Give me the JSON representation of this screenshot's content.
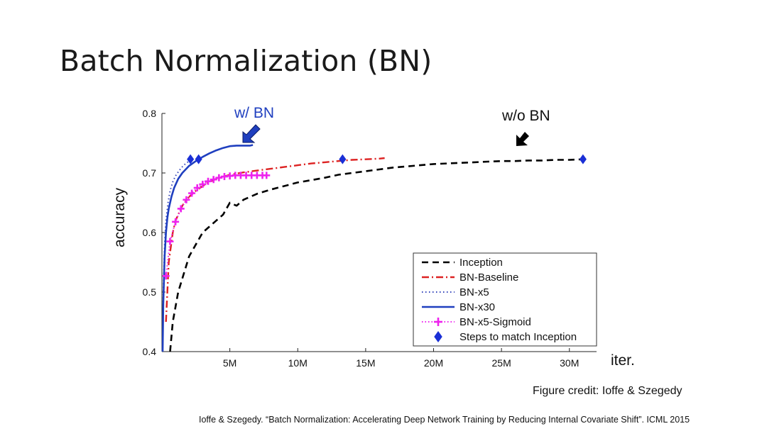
{
  "slide": {
    "title": "Batch Normalization (BN)",
    "credit": "Figure credit: Ioffe & Szegedy",
    "citation": "Ioffe & Szegedy. “Batch Normalization: Accelerating Deep Network Training by Reducing Internal Covariate Shift”. ICML 2015"
  },
  "annotations": {
    "with_bn": "w/ BN",
    "without_bn": "w/o BN",
    "with_bn_color": "#1f3fbf",
    "arrow_colors": {
      "with_bn": "#1f3fbf",
      "without_bn": "#000000"
    }
  },
  "chart_data": {
    "type": "line",
    "title": "",
    "xlabel": "iter.",
    "ylabel": "accuracy",
    "xlim": [
      0,
      32
    ],
    "ylim": [
      0.4,
      0.8
    ],
    "x_unit": "M",
    "xticks": [
      5,
      10,
      15,
      20,
      25,
      30
    ],
    "xtick_labels": [
      "5M",
      "10M",
      "15M",
      "20M",
      "25M",
      "30M"
    ],
    "yticks": [
      0.4,
      0.5,
      0.6,
      0.7,
      0.8
    ],
    "ytick_labels": [
      "0.4",
      "0.5",
      "0.6",
      "0.7",
      "0.8"
    ],
    "grid": false,
    "legend_position": "bottom-right",
    "series": [
      {
        "name": "Inception",
        "color": "#000000",
        "style": "dashed",
        "x": [
          0.6,
          0.8,
          1.2,
          1.6,
          2.0,
          2.5,
          3.0,
          3.5,
          4.0,
          4.5,
          5.0,
          5.5,
          6.0,
          7.0,
          8.0,
          9.0,
          10.0,
          11.0,
          12.0,
          13.0,
          14.0,
          15.0,
          16.0,
          17.0,
          18.0,
          19.0,
          20.0,
          21.0,
          22.0,
          23.0,
          24.0,
          25.0,
          26.0,
          27.0,
          28.0,
          29.0,
          30.0,
          31.0
        ],
        "y": [
          0.4,
          0.45,
          0.5,
          0.53,
          0.56,
          0.58,
          0.6,
          0.61,
          0.62,
          0.63,
          0.65,
          0.645,
          0.655,
          0.665,
          0.672,
          0.678,
          0.684,
          0.688,
          0.692,
          0.697,
          0.7,
          0.703,
          0.706,
          0.709,
          0.711,
          0.713,
          0.715,
          0.716,
          0.717,
          0.718,
          0.719,
          0.72,
          0.72,
          0.721,
          0.721,
          0.722,
          0.722,
          0.723
        ]
      },
      {
        "name": "BN-Baseline",
        "color": "#dd2222",
        "style": "dashdot",
        "x": [
          0.3,
          0.5,
          0.8,
          1.0,
          1.5,
          2.0,
          2.5,
          3.0,
          3.5,
          4.0,
          5.0,
          6.0,
          7.0,
          8.0,
          9.0,
          10.0,
          11.0,
          12.0,
          13.0,
          14.0,
          15.0,
          16.0,
          16.4
        ],
        "y": [
          0.45,
          0.55,
          0.6,
          0.62,
          0.645,
          0.66,
          0.67,
          0.678,
          0.685,
          0.69,
          0.697,
          0.701,
          0.704,
          0.707,
          0.71,
          0.713,
          0.716,
          0.718,
          0.72,
          0.722,
          0.723,
          0.724,
          0.725
        ]
      },
      {
        "name": "BN-x5",
        "color": "#3344bb",
        "style": "dotted",
        "x": [
          0.05,
          0.1,
          0.2,
          0.3,
          0.45,
          0.6,
          0.8,
          1.0,
          1.3,
          1.6,
          2.0
        ],
        "y": [
          0.4,
          0.5,
          0.58,
          0.62,
          0.65,
          0.67,
          0.685,
          0.695,
          0.705,
          0.713,
          0.72
        ]
      },
      {
        "name": "BN-x30",
        "color": "#1f3fbf",
        "style": "solid",
        "x": [
          0.05,
          0.1,
          0.2,
          0.3,
          0.4,
          0.5,
          0.7,
          0.9,
          1.2,
          1.5,
          2.0,
          2.5,
          3.0,
          3.5,
          4.0,
          4.5,
          5.0,
          5.5,
          6.0,
          6.5,
          6.7
        ],
        "y": [
          0.4,
          0.48,
          0.56,
          0.6,
          0.625,
          0.64,
          0.66,
          0.675,
          0.69,
          0.7,
          0.712,
          0.72,
          0.727,
          0.733,
          0.738,
          0.742,
          0.745,
          0.746,
          0.746,
          0.746,
          0.747
        ]
      },
      {
        "name": "BN-x5-Sigmoid",
        "color": "#ee22ee",
        "style": "dotted-plus",
        "x": [
          0.3,
          0.6,
          1.0,
          1.4,
          1.8,
          2.2,
          2.6,
          3.0,
          3.4,
          3.8,
          4.2,
          4.6,
          5.0,
          5.4,
          5.8,
          6.2,
          6.6,
          7.0,
          7.4,
          7.7
        ],
        "y": [
          0.527,
          0.585,
          0.618,
          0.64,
          0.655,
          0.666,
          0.675,
          0.681,
          0.686,
          0.689,
          0.692,
          0.694,
          0.695,
          0.696,
          0.696,
          0.696,
          0.696,
          0.696,
          0.696,
          0.696
        ]
      },
      {
        "name": "Steps to match Inception",
        "color": "#1a2fd6",
        "style": "diamond-markers",
        "x": [
          2.1,
          2.7,
          13.3,
          31.0
        ],
        "y": [
          0.723,
          0.723,
          0.723,
          0.723
        ]
      }
    ]
  }
}
